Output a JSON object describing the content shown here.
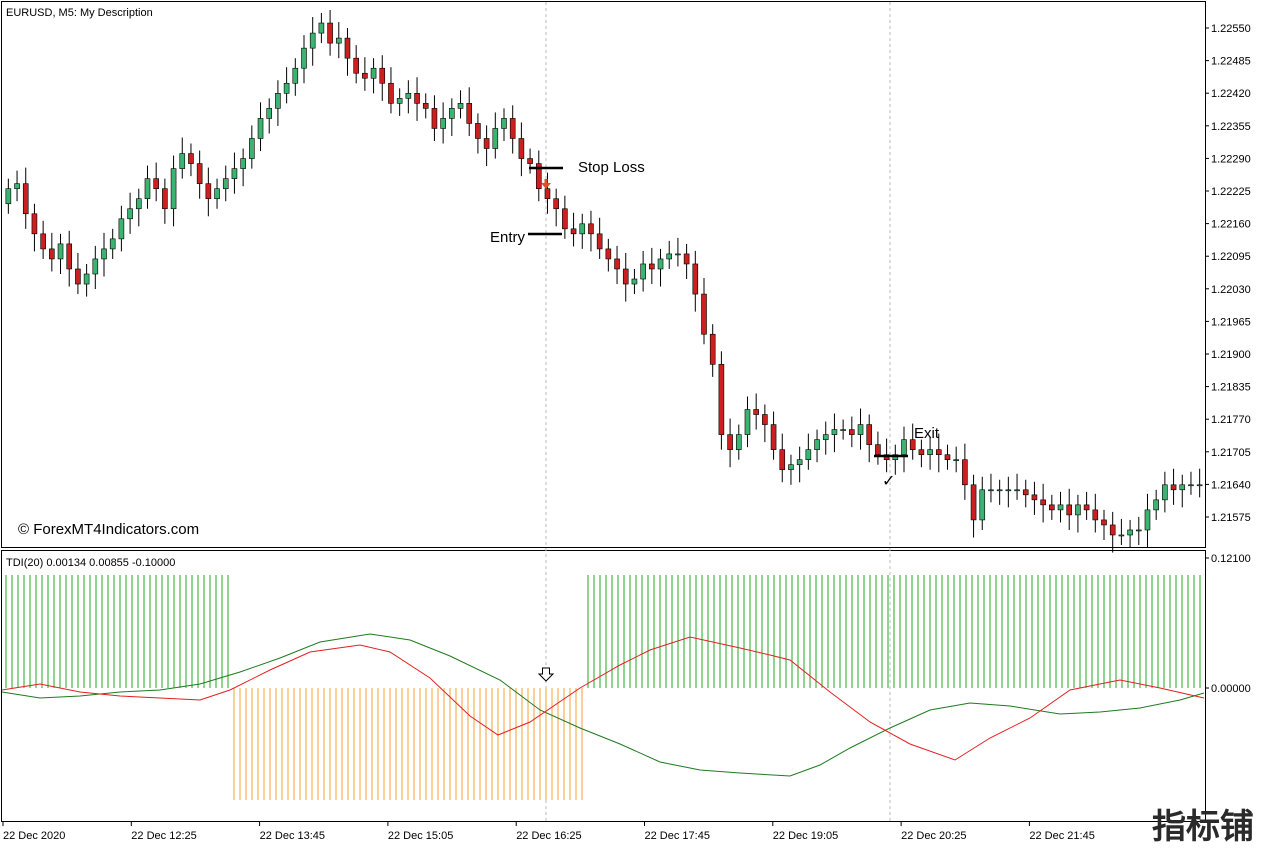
{
  "window": {
    "title": "EURUSD, M5:  My Description"
  },
  "price_panel": {
    "header": "EURUSD, M5:  My Description",
    "watermark": "© ForexMT4Indicators.com",
    "price_ticks": [
      "1.22550",
      "1.22485",
      "1.22420",
      "1.22355",
      "1.22290",
      "1.22225",
      "1.22160",
      "1.22095",
      "1.22030",
      "1.21965",
      "1.21900",
      "1.21835",
      "1.21770",
      "1.21705",
      "1.21640",
      "1.21575"
    ],
    "annotations": {
      "stop_loss": "Stop Loss",
      "entry": "Entry",
      "exit": "Exit",
      "check": "✓"
    }
  },
  "indicator_panel": {
    "header": "TDI(20) 0.00134 0.00855 -0.10000",
    "ticks": [
      "0.12100",
      "0.00000"
    ]
  },
  "time_axis": {
    "labels": [
      "22 Dec 2020",
      "22 Dec 12:25",
      "22 Dec 13:45",
      "22 Dec 15:05",
      "22 Dec 16:25",
      "22 Dec 17:45",
      "22 Dec 19:05",
      "22 Dec 20:25",
      "22 Dec 21:45"
    ]
  },
  "corner_logo": "指标铺",
  "colors": {
    "bull": "#3cb371",
    "bear": "#cc1f1f",
    "signal_red": "#e02020",
    "signal_green": "#1f7a1f",
    "hist_green": "#22aa22",
    "hist_orange": "#f0a030",
    "arrow": "#e05020"
  },
  "chart_data": {
    "type": "candlestick",
    "symbol": "EURUSD",
    "timeframe": "M5",
    "y_range": [
      1.2154,
      1.226
    ],
    "candles_close": [
      1.2224,
      1.2225,
      1.2219,
      1.2215,
      1.2212,
      1.221,
      1.2213,
      1.2208,
      1.2205,
      1.2207,
      1.221,
      1.2212,
      1.2214,
      1.2218,
      1.222,
      1.2222,
      1.2226,
      1.2224,
      1.222,
      1.2228,
      1.2231,
      1.2229,
      1.2225,
      1.2222,
      1.2224,
      1.2226,
      1.2228,
      1.223,
      1.2234,
      1.2238,
      1.224,
      1.2243,
      1.2245,
      1.2248,
      1.2252,
      1.2255,
      1.2257,
      1.2253,
      1.2254,
      1.225,
      1.2247,
      1.2246,
      1.2248,
      1.2245,
      1.2241,
      1.2242,
      1.2243,
      1.2241,
      1.224,
      1.2236,
      1.2238,
      1.224,
      1.2241,
      1.2237,
      1.2234,
      1.2232,
      1.2236,
      1.2238,
      1.2234,
      1.223,
      1.2229,
      1.2224,
      1.2222,
      1.222,
      1.2216,
      1.2215,
      1.2217,
      1.2215,
      1.2212,
      1.221,
      1.2208,
      1.2205,
      1.2206,
      1.2209,
      1.2208,
      1.221,
      1.2211,
      1.2211,
      1.2209,
      1.2203,
      1.2195,
      1.2189,
      1.2175,
      1.2172,
      1.2175,
      1.218,
      1.2179,
      1.2177,
      1.2172,
      1.2168,
      1.2169,
      1.217,
      1.2172,
      1.2174,
      1.2175,
      1.2176,
      1.2176,
      1.2175,
      1.2177,
      1.2173,
      1.2171,
      1.217,
      1.2171,
      1.2174,
      1.2172,
      1.2171,
      1.2172,
      1.2171,
      1.217,
      1.217,
      1.2165,
      1.2158,
      1.2164,
      1.2164,
      1.2164,
      1.2164,
      1.2164,
      1.2163,
      1.2162,
      1.2161,
      1.216,
      1.2161,
      1.2159,
      1.2161,
      1.216,
      1.2158,
      1.2157,
      1.2155,
      1.2155,
      1.2156,
      1.2156,
      1.216,
      1.2162,
      1.2165,
      1.2164,
      1.2165,
      1.2165,
      1.2165
    ]
  }
}
